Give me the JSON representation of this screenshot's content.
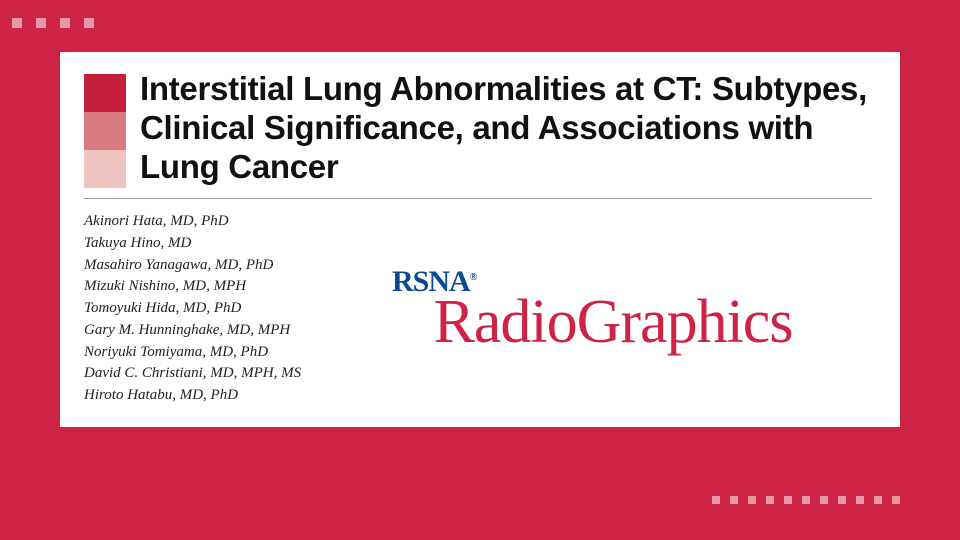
{
  "background_color": "#cf2345",
  "decorative_dot_color": "#e598a7",
  "dots_top_count": 4,
  "dots_bottom_count": 11,
  "card": {
    "background_color": "#ffffff",
    "color_blocks": [
      "#c4203c",
      "#d97b7e",
      "#efc3bf"
    ],
    "title": "Interstitial Lung Abnormalities at CT: Subtypes, Clinical Significance, and Associations with Lung Cancer",
    "title_color": "#111111",
    "authors": [
      "Akinori Hata, MD, PhD",
      "Takuya Hino, MD",
      "Masahiro Yanagawa, MD, PhD",
      "Mizuki Nishino, MD, MPH",
      "Tomoyuki Hida, MD, PhD",
      "Gary M. Hunninghake, MD, MPH",
      "Noriyuki Tomiyama, MD, PhD",
      "David C. Christiani, MD, MPH, MS",
      "Hiroto Hatabu, MD, PhD"
    ],
    "logo": {
      "top_text": "RSNA",
      "top_color": "#0b4a8f",
      "reg_mark": "®",
      "main_text": "RadioGraphics",
      "main_color": "#cf2345"
    }
  }
}
